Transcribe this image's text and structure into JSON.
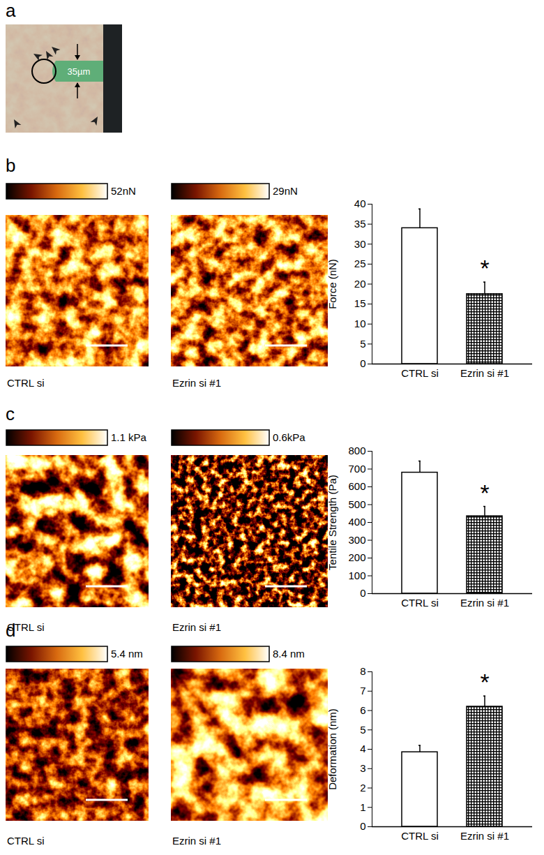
{
  "chart_data": [
    {
      "type": "bar",
      "panel": "b",
      "categories": [
        "CTRL si",
        "Ezrin si #1"
      ],
      "values": [
        34,
        17.5
      ],
      "errors": [
        4.8,
        3
      ],
      "colors": [
        "#ffffff",
        "#000000"
      ],
      "ylabel": "Force (nN)",
      "ylim": [
        0,
        40
      ],
      "yticks": [
        0,
        5,
        10,
        15,
        20,
        25,
        30,
        35,
        40
      ],
      "annotations": [
        {
          "category": "Ezrin si #1",
          "text": "*"
        }
      ],
      "images": [
        {
          "caption": "CTRL si",
          "colorbar": {
            "range": [
              0,
              52
            ],
            "label": "52nN"
          }
        },
        {
          "caption": "Ezrin si #1",
          "colorbar": {
            "range": [
              0,
              29
            ],
            "label": "29nN"
          }
        }
      ]
    },
    {
      "type": "bar",
      "panel": "c",
      "categories": [
        "CTRL si",
        "Ezrin si #1"
      ],
      "values": [
        680,
        435
      ],
      "errors": [
        65,
        55
      ],
      "colors": [
        "#ffffff",
        "#000000"
      ],
      "ylabel": "Tentile Strength (Pa)",
      "ylim": [
        0,
        800
      ],
      "yticks": [
        0,
        100,
        200,
        300,
        400,
        500,
        600,
        700,
        800
      ],
      "annotations": [
        {
          "category": "Ezrin si #1",
          "text": "*"
        }
      ],
      "images": [
        {
          "caption": "CTRL si",
          "colorbar": {
            "range": [
              0,
              1.1
            ],
            "label": "1.1 kPa"
          }
        },
        {
          "caption": "Ezrin si #1",
          "colorbar": {
            "range": [
              0,
              0.6
            ],
            "label": "0.6kPa"
          }
        }
      ]
    },
    {
      "type": "bar",
      "panel": "d",
      "categories": [
        "CTRL si",
        "Ezrin si #1"
      ],
      "values": [
        3.85,
        6.2
      ],
      "errors": [
        0.35,
        0.55
      ],
      "colors": [
        "#ffffff",
        "#000000"
      ],
      "ylabel": "Deformation (nm)",
      "ylim": [
        0,
        8
      ],
      "yticks": [
        0,
        1,
        2,
        3,
        4,
        5,
        6,
        7,
        8
      ],
      "annotations": [
        {
          "category": "Ezrin si #1",
          "text": "*"
        }
      ],
      "images": [
        {
          "caption": "CTRL si",
          "colorbar": {
            "range": [
              0,
              5.4
            ],
            "label": "5.4 nm"
          }
        },
        {
          "caption": "Ezrin si #1",
          "colorbar": {
            "range": [
              0,
              8.4
            ],
            "label": "8.4 nm"
          }
        }
      ]
    }
  ],
  "panel_a": {
    "panel": "a",
    "annotation": "35µm"
  }
}
